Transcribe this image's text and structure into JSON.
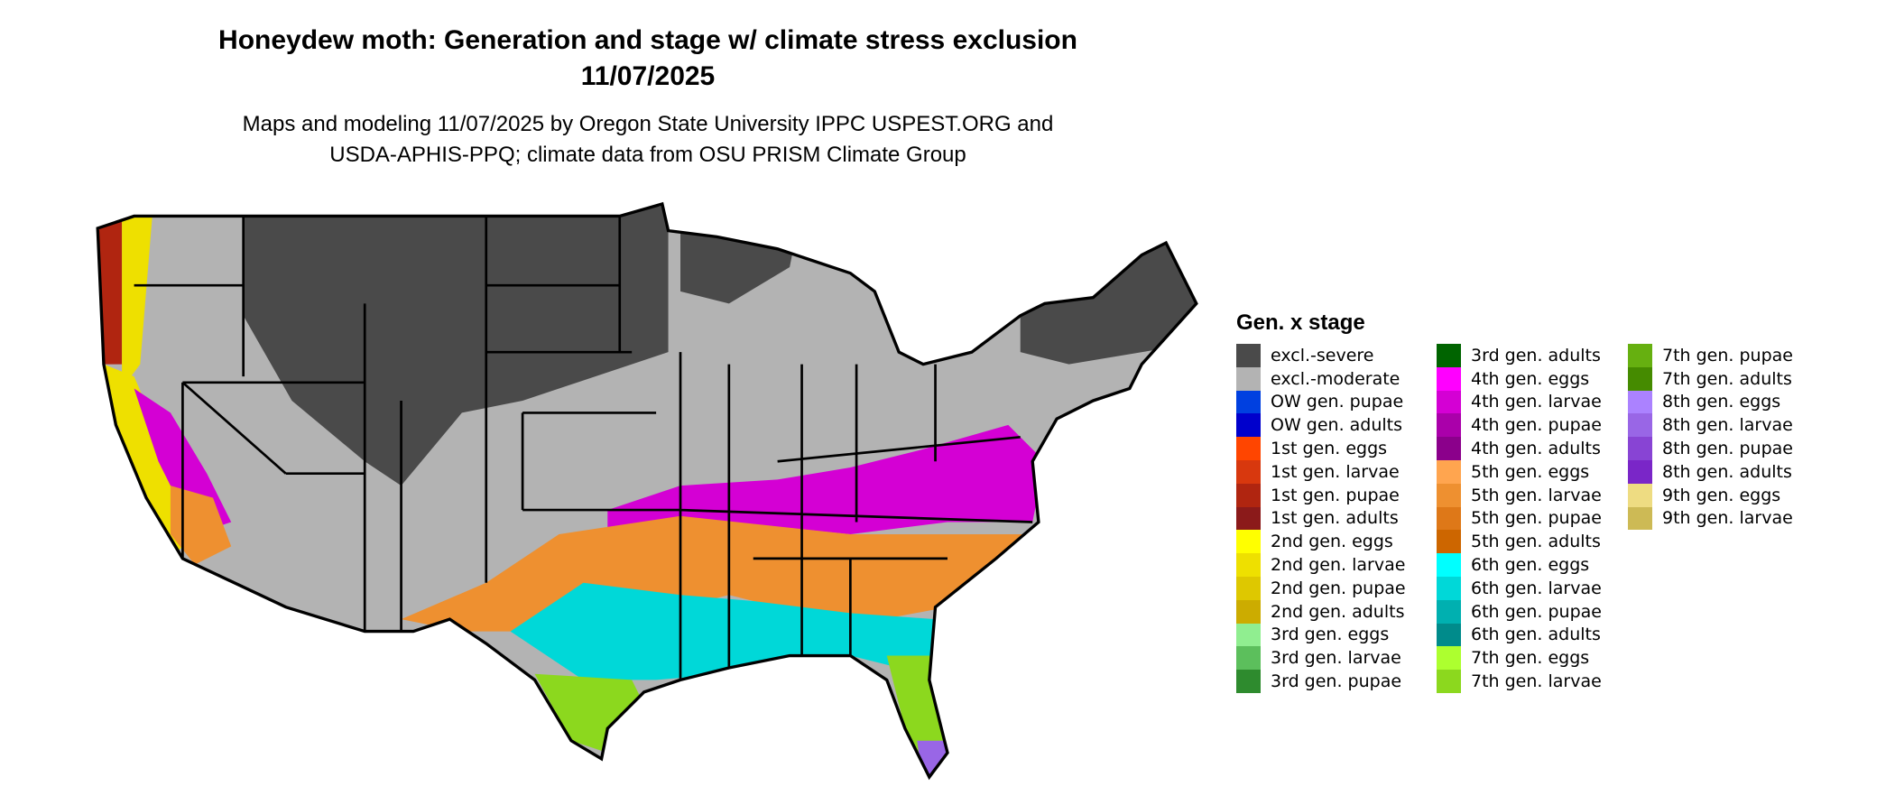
{
  "title": "Honeydew moth: Generation and stage w/ climate stress exclusion",
  "date": "11/07/2025",
  "subtitle_line1": "Maps and modeling 11/07/2025 by Oregon State University IPPC USPEST.ORG and",
  "subtitle_line2": "USDA-APHIS-PPQ; climate data from OSU PRISM Climate Group",
  "legend": {
    "title": "Gen. x stage",
    "items": [
      {
        "label": "excl.-severe",
        "color": "#4a4a4a"
      },
      {
        "label": "excl.-moderate",
        "color": "#b3b3b3"
      },
      {
        "label": "OW gen. pupae",
        "color": "#0040e0"
      },
      {
        "label": "OW gen. adults",
        "color": "#0000cc"
      },
      {
        "label": "1st gen. eggs",
        "color": "#ff4500"
      },
      {
        "label": "1st gen. larvae",
        "color": "#d8380e"
      },
      {
        "label": "1st gen. pupae",
        "color": "#b02510"
      },
      {
        "label": "1st gen. adults",
        "color": "#8b1a1a"
      },
      {
        "label": "2nd gen. eggs",
        "color": "#ffff00"
      },
      {
        "label": "2nd gen. larvae",
        "color": "#eee000"
      },
      {
        "label": "2nd gen. pupae",
        "color": "#dec800"
      },
      {
        "label": "2nd gen. adults",
        "color": "#ccac00"
      },
      {
        "label": "3rd gen. eggs",
        "color": "#90ee90"
      },
      {
        "label": "3rd gen. larvae",
        "color": "#5cbf5c"
      },
      {
        "label": "3rd gen. pupae",
        "color": "#2e8b2e"
      },
      {
        "label": "3rd gen. adults",
        "color": "#006400"
      },
      {
        "label": "4th gen. eggs",
        "color": "#ff00ff"
      },
      {
        "label": "4th gen. larvae",
        "color": "#d400d4"
      },
      {
        "label": "4th gen. pupae",
        "color": "#aa00aa"
      },
      {
        "label": "4th gen. adults",
        "color": "#8b008b"
      },
      {
        "label": "5th gen. eggs",
        "color": "#ffa54f"
      },
      {
        "label": "5th gen. larvae",
        "color": "#ee9030"
      },
      {
        "label": "5th gen. pupae",
        "color": "#de7818"
      },
      {
        "label": "5th gen. adults",
        "color": "#cd6600"
      },
      {
        "label": "6th gen. eggs",
        "color": "#00ffff"
      },
      {
        "label": "6th gen. larvae",
        "color": "#00d8d8"
      },
      {
        "label": "6th gen. pupae",
        "color": "#00b0b0"
      },
      {
        "label": "6th gen. adults",
        "color": "#008b8b"
      },
      {
        "label": "7th gen. eggs",
        "color": "#adff2f"
      },
      {
        "label": "7th gen. larvae",
        "color": "#8cd81e"
      },
      {
        "label": "7th gen. pupae",
        "color": "#66b010"
      },
      {
        "label": "7th gen. adults",
        "color": "#458b00"
      },
      {
        "label": "8th gen. eggs",
        "color": "#ab82ff"
      },
      {
        "label": "8th gen. larvae",
        "color": "#9966e6"
      },
      {
        "label": "8th gen. pupae",
        "color": "#8844d4"
      },
      {
        "label": "8th gen. adults",
        "color": "#7a26c8"
      },
      {
        "label": "9th gen. eggs",
        "color": "#eedc82"
      },
      {
        "label": "9th gen. larvae",
        "color": "#cdba55"
      }
    ]
  }
}
